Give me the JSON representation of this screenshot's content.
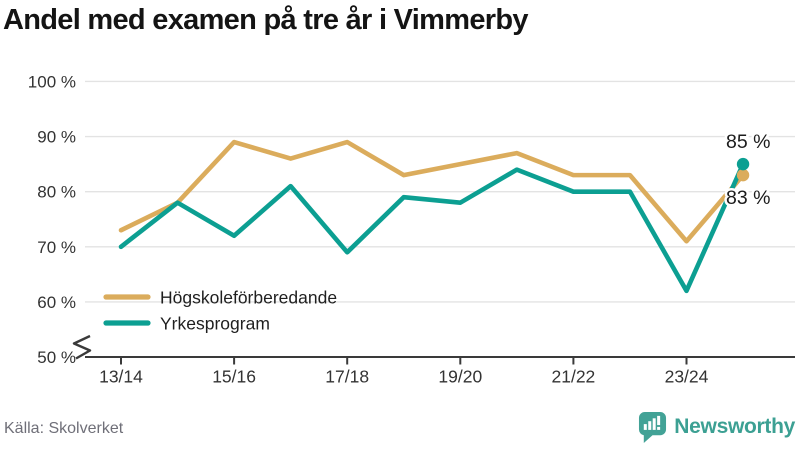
{
  "title": "Andel med examen på tre år i Vimmerby",
  "source": "Källa: Skolverket",
  "branding": {
    "logo_text": "Newsworthy",
    "logo_icon": "bar-chart-speech-bubble",
    "logo_color": "#42a296"
  },
  "colors": {
    "hogskoleforberedande": "#dbac5c",
    "yrkesprogram": "#0c9f92",
    "grid": "#e3e3e3",
    "axis": "#3a3a3a",
    "tick_text": "#333333",
    "annotation_text": "#1c1c1c",
    "legend_text": "#1f1f1f"
  },
  "chart_data": {
    "type": "line",
    "title": "Andel med examen på tre år i Vimmerby",
    "x": [
      "13/14",
      "14/15",
      "15/16",
      "16/17",
      "17/18",
      "18/19",
      "19/20",
      "20/21",
      "21/22",
      "22/23",
      "23/24",
      "24/25"
    ],
    "x_tick_labels": [
      "13/14",
      "15/16",
      "17/18",
      "19/20",
      "21/22",
      "23/24"
    ],
    "series": [
      {
        "name": "Högskoleförberedande",
        "color": "#dbac5c",
        "values": [
          73,
          78,
          89,
          86,
          89,
          83,
          85,
          87,
          83,
          83,
          71,
          83
        ],
        "end_label": "83 %"
      },
      {
        "name": "Yrkesprogram",
        "color": "#0c9f92",
        "values": [
          70,
          78,
          72,
          81,
          69,
          79,
          78,
          84,
          80,
          80,
          62,
          85
        ],
        "end_label": "85 %"
      }
    ],
    "xlabel": "",
    "ylabel": "",
    "ylim": [
      50,
      100
    ],
    "yticks": [
      50,
      60,
      70,
      80,
      90,
      100
    ],
    "ytick_format": "{v} %",
    "axis_break": true,
    "grid": "horizontal",
    "legend_position": "inside-bottom-left"
  }
}
